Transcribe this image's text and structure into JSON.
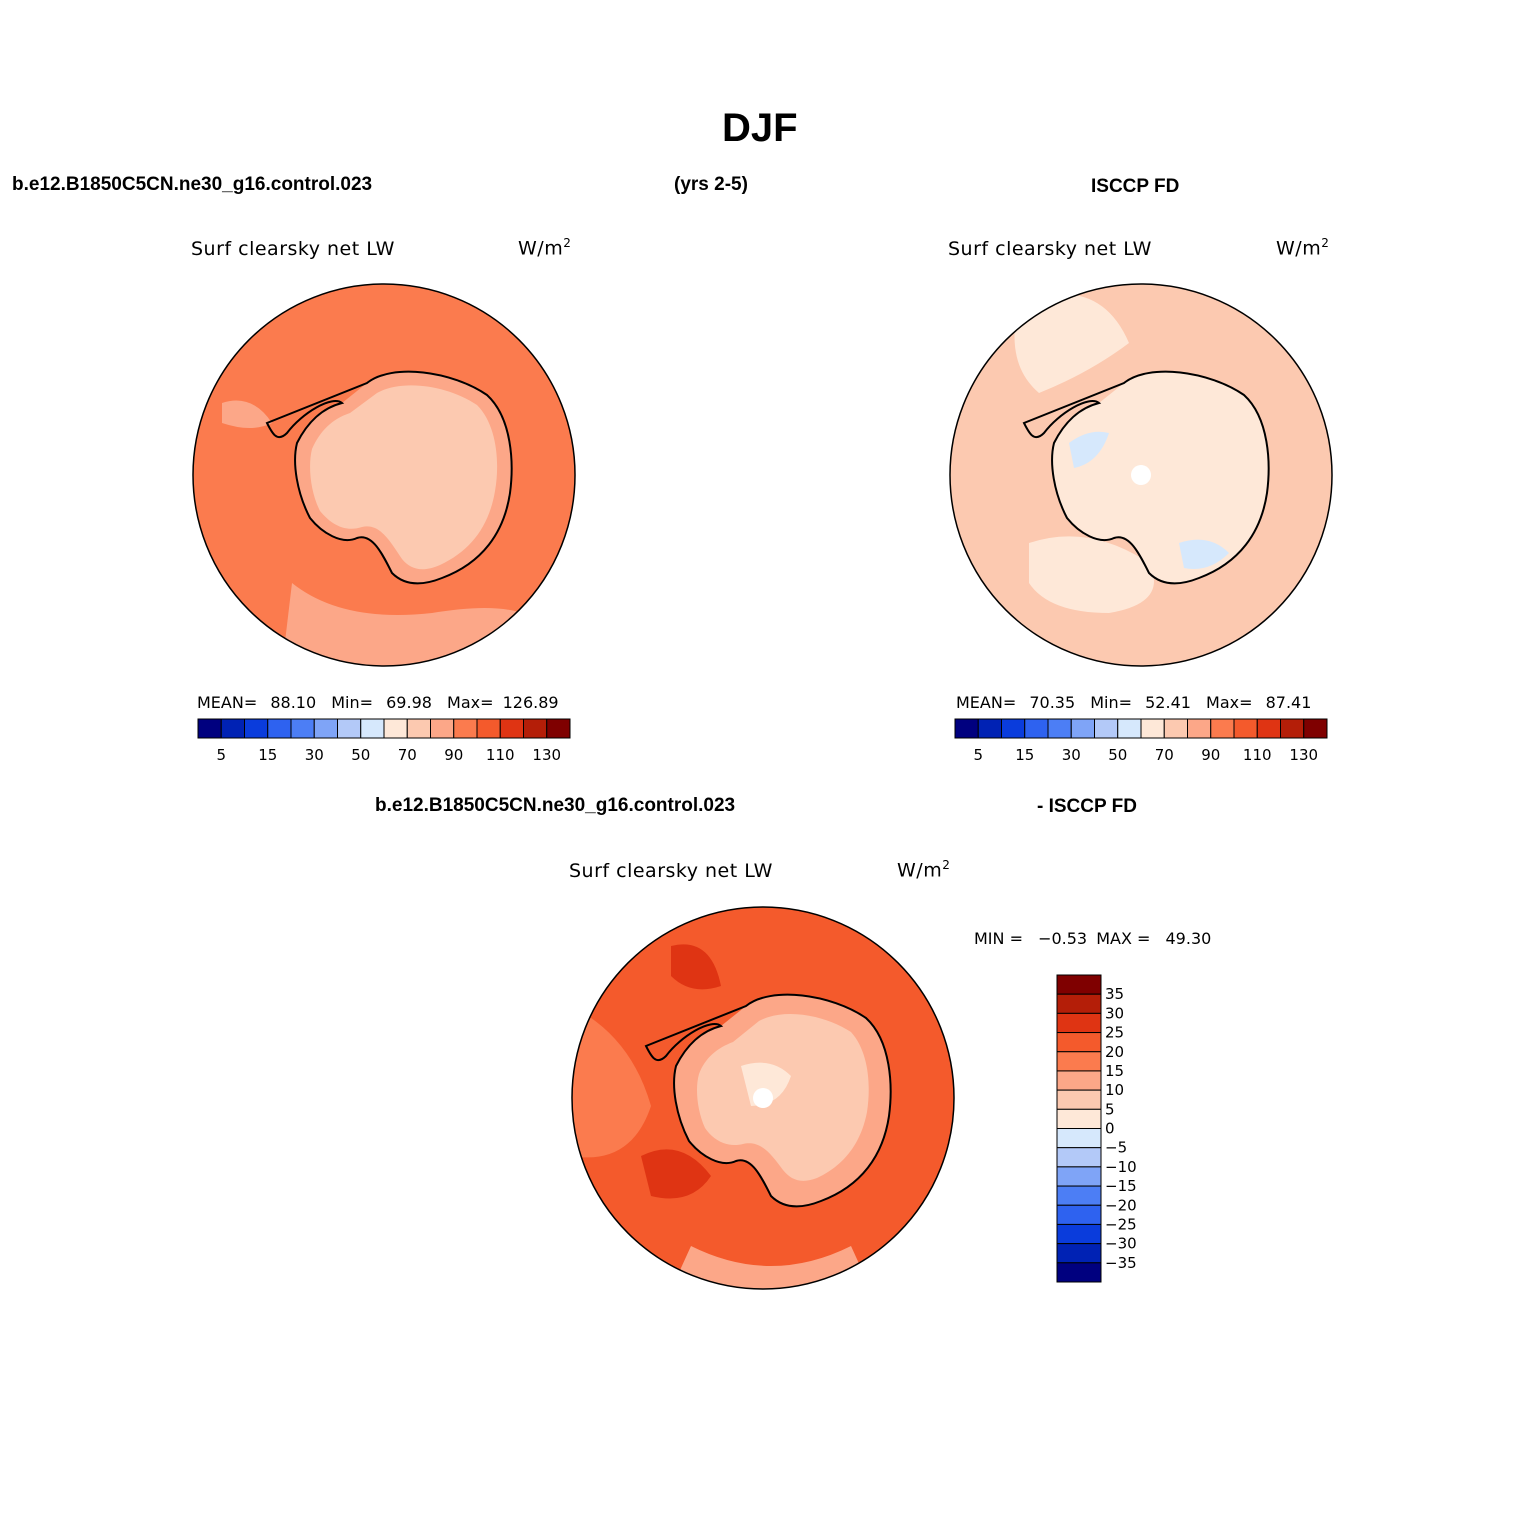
{
  "figure_title": "DJF",
  "header": {
    "left": "b.e12.B1850C5CN.ne30_g16.control.023",
    "middle": "(yrs 2-5)",
    "right": "ISCCP FD",
    "diff_left": "b.e12.B1850C5CN.ne30_g16.control.023",
    "diff_right": "- ISCCP FD"
  },
  "colors": {
    "ocean_model": "#FB7B4E",
    "continent_model": "#FCC9B0",
    "ocean_obs": "#FCC9B0",
    "continent_obs": "#FEE8D8",
    "ocean_diff": "#F45A2C",
    "continent_diff": "#FCC9B0",
    "coast": "#000000"
  },
  "chart_data": [
    {
      "type": "heatmap",
      "id": "model",
      "variable": "Surf clearsky net LW",
      "units": "W/m",
      "units_sup": "2",
      "stats": {
        "mean_label": "MEAN=",
        "mean": "88.10",
        "min_label": "Min=",
        "min": "69.98",
        "max_label": "Max=",
        "max": "126.89"
      },
      "colorbar": {
        "orientation": "horizontal",
        "colors": [
          "#00007F",
          "#0022B4",
          "#0A3CDC",
          "#2E62F0",
          "#4C7EF5",
          "#7FA4F7",
          "#B3C9F8",
          "#D6E8FC",
          "#FEE8D8",
          "#FCC9B0",
          "#FCA788",
          "#FB7B4E",
          "#F45A2C",
          "#DF3413",
          "#B41E08",
          "#7F0000"
        ],
        "tick_labels": [
          "5",
          "15",
          "30",
          "50",
          "70",
          "90",
          "110",
          "130"
        ]
      }
    },
    {
      "type": "heatmap",
      "id": "obs",
      "variable": "Surf clearsky net LW",
      "units": "W/m",
      "units_sup": "2",
      "stats": {
        "mean_label": "MEAN=",
        "mean": "70.35",
        "min_label": "Min=",
        "min": "52.41",
        "max_label": "Max=",
        "max": "87.41"
      },
      "colorbar": {
        "orientation": "horizontal",
        "colors": [
          "#00007F",
          "#0022B4",
          "#0A3CDC",
          "#2E62F0",
          "#4C7EF5",
          "#7FA4F7",
          "#B3C9F8",
          "#D6E8FC",
          "#FEE8D8",
          "#FCC9B0",
          "#FCA788",
          "#FB7B4E",
          "#F45A2C",
          "#DF3413",
          "#B41E08",
          "#7F0000"
        ],
        "tick_labels": [
          "5",
          "15",
          "30",
          "50",
          "70",
          "90",
          "110",
          "130"
        ]
      }
    },
    {
      "type": "heatmap",
      "id": "diff",
      "variable": "Surf clearsky net LW",
      "units": "W/m",
      "units_sup": "2",
      "stats": {
        "min_label": "MIN =",
        "min": "−0.53",
        "max_label": "MAX =",
        "max": "49.30"
      },
      "colorbar": {
        "orientation": "vertical",
        "colors_top_to_bottom": [
          "#7F0000",
          "#B41E08",
          "#DF3413",
          "#F45A2C",
          "#FB7B4E",
          "#FCA788",
          "#FCC9B0",
          "#FEE8D8",
          "#D6E8FC",
          "#B3C9F8",
          "#7FA4F7",
          "#4C7EF5",
          "#2E62F0",
          "#0A3CDC",
          "#0022B4",
          "#00007F"
        ],
        "tick_labels_top_to_bottom": [
          "35",
          "30",
          "25",
          "20",
          "15",
          "10",
          "5",
          "0",
          "−5",
          "−10",
          "−15",
          "−20",
          "−25",
          "−30",
          "−35"
        ]
      }
    }
  ]
}
